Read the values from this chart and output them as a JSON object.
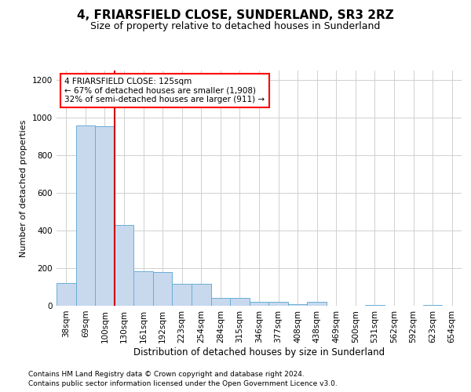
{
  "title": "4, FRIARSFIELD CLOSE, SUNDERLAND, SR3 2RZ",
  "subtitle": "Size of property relative to detached houses in Sunderland",
  "xlabel": "Distribution of detached houses by size in Sunderland",
  "ylabel": "Number of detached properties",
  "footnote1": "Contains HM Land Registry data © Crown copyright and database right 2024.",
  "footnote2": "Contains public sector information licensed under the Open Government Licence v3.0.",
  "annotation_line1": "4 FRIARSFIELD CLOSE: 125sqm",
  "annotation_line2": "← 67% of detached houses are smaller (1,908)",
  "annotation_line3": "32% of semi-detached houses are larger (911) →",
  "bar_color": "#c8d9ee",
  "bar_edge_color": "#6aaed6",
  "vline_color": "#cc0000",
  "vline_bin_index": 2.5,
  "categories": [
    "38sqm",
    "69sqm",
    "100sqm",
    "130sqm",
    "161sqm",
    "192sqm",
    "223sqm",
    "254sqm",
    "284sqm",
    "315sqm",
    "346sqm",
    "377sqm",
    "408sqm",
    "438sqm",
    "469sqm",
    "500sqm",
    "531sqm",
    "562sqm",
    "592sqm",
    "623sqm",
    "654sqm"
  ],
  "values": [
    120,
    960,
    955,
    430,
    185,
    180,
    115,
    115,
    40,
    40,
    20,
    20,
    10,
    20,
    0,
    0,
    5,
    0,
    0,
    5,
    0
  ],
  "ylim": [
    0,
    1250
  ],
  "yticks": [
    0,
    200,
    400,
    600,
    800,
    1000,
    1200
  ],
  "background_color": "#ffffff",
  "grid_color": "#d0d0d0",
  "title_fontsize": 11,
  "subtitle_fontsize": 9,
  "ylabel_fontsize": 8,
  "xlabel_fontsize": 8.5,
  "tick_fontsize": 7.5,
  "annotation_fontsize": 7.5,
  "footnote_fontsize": 6.5
}
